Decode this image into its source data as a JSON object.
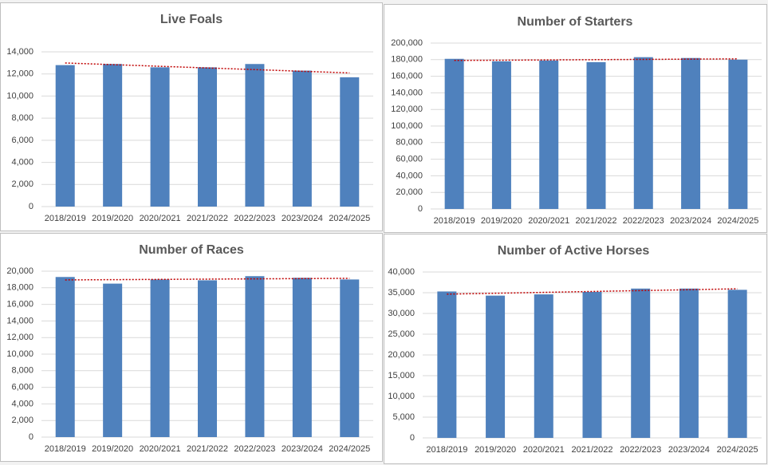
{
  "chart_data": [
    {
      "type": "bar",
      "title": "Live Foals",
      "categories": [
        "2018/2019",
        "2019/2020",
        "2020/2021",
        "2021/2022",
        "2022/2023",
        "2023/2024",
        "2024/2025"
      ],
      "values": [
        12800,
        12900,
        12600,
        12600,
        12900,
        12300,
        11700
      ],
      "color": "#4f81bd",
      "ylim": [
        0,
        14000
      ],
      "yticks": [
        0,
        {
          "value": 2000,
          "label": "2,000"
        },
        {
          "value": 4000,
          "label": "4,000"
        },
        {
          "value": 6000,
          "label": "6,000"
        },
        {
          "value": 8000,
          "label": "8,000"
        },
        {
          "value": 10000,
          "label": "10,000"
        },
        {
          "value": 12000,
          "label": "12,000"
        },
        {
          "value": 14000,
          "label": "14,000"
        }
      ],
      "grid": true,
      "trendline": "linear",
      "trendline_color": "#c00000"
    },
    {
      "type": "bar",
      "title": "Number of Starters",
      "categories": [
        "2018/2019",
        "2019/2020",
        "2020/2021",
        "2021/2022",
        "2022/2023",
        "2023/2024",
        "2024/2025"
      ],
      "values": [
        181000,
        178000,
        179000,
        177000,
        183000,
        182000,
        180000
      ],
      "color": "#4f81bd",
      "ylim": [
        0,
        200000
      ],
      "yticks": [
        0,
        {
          "value": 20000,
          "label": "20,000"
        },
        {
          "value": 40000,
          "label": "40,000"
        },
        {
          "value": 60000,
          "label": "60,000"
        },
        {
          "value": 80000,
          "label": "80,000"
        },
        {
          "value": 100000,
          "label": "100,000"
        },
        {
          "value": 120000,
          "label": "120,000"
        },
        {
          "value": 140000,
          "label": "140,000"
        },
        {
          "value": 160000,
          "label": "160,000"
        },
        {
          "value": 180000,
          "label": "180,000"
        },
        {
          "value": 200000,
          "label": "200,000"
        }
      ],
      "grid": true,
      "trendline": "linear",
      "trendline_color": "#c00000"
    },
    {
      "type": "bar",
      "title": "Number of Races",
      "categories": [
        "2018/2019",
        "2019/2020",
        "2020/2021",
        "2021/2022",
        "2022/2023",
        "2023/2024",
        "2024/2025"
      ],
      "values": [
        19300,
        18500,
        19000,
        18900,
        19400,
        19200,
        19000
      ],
      "color": "#4f81bd",
      "ylim": [
        0,
        20000
      ],
      "yticks": [
        0,
        {
          "value": 2000,
          "label": "2,000"
        },
        {
          "value": 4000,
          "label": "4,000"
        },
        {
          "value": 6000,
          "label": "6,000"
        },
        {
          "value": 8000,
          "label": "8,000"
        },
        {
          "value": 10000,
          "label": "10,000"
        },
        {
          "value": 12000,
          "label": "12,000"
        },
        {
          "value": 14000,
          "label": "14,000"
        },
        {
          "value": 16000,
          "label": "16,000"
        },
        {
          "value": 18000,
          "label": "18,000"
        },
        {
          "value": 20000,
          "label": "20,000"
        }
      ],
      "grid": true,
      "trendline": "linear",
      "trendline_color": "#c00000"
    },
    {
      "type": "bar",
      "title": "Number of Active Horses",
      "categories": [
        "2018/2019",
        "2019/2020",
        "2020/2021",
        "2021/2022",
        "2022/2023",
        "2023/2024",
        "2024/2025"
      ],
      "values": [
        35300,
        34300,
        34600,
        35200,
        36000,
        36000,
        35700
      ],
      "color": "#4f81bd",
      "ylim": [
        0,
        40000
      ],
      "yticks": [
        0,
        {
          "value": 5000,
          "label": "5,000"
        },
        {
          "value": 10000,
          "label": "10,000"
        },
        {
          "value": 15000,
          "label": "15,000"
        },
        {
          "value": 20000,
          "label": "20,000"
        },
        {
          "value": 25000,
          "label": "25,000"
        },
        {
          "value": 30000,
          "label": "30,000"
        },
        {
          "value": 35000,
          "label": "35,000"
        },
        {
          "value": 40000,
          "label": "40,000"
        }
      ],
      "grid": true,
      "trendline": "linear",
      "trendline_color": "#c00000"
    }
  ]
}
